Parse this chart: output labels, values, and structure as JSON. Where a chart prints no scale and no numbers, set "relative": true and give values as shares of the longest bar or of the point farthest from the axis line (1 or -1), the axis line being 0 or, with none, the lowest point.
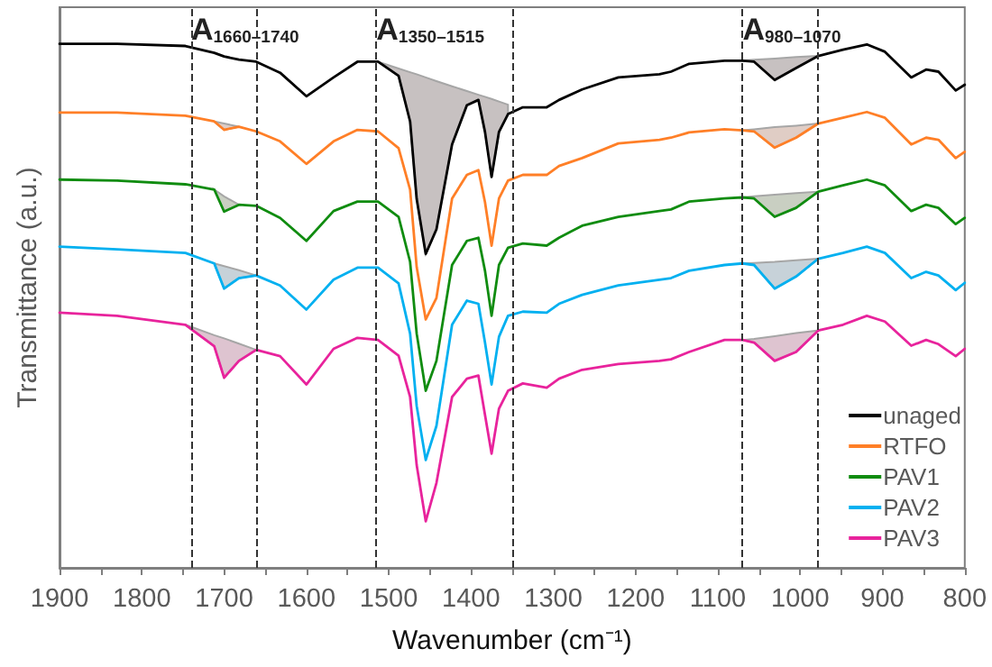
{
  "chart_data": {
    "type": "line",
    "relative": true,
    "xlabel": "Wavenumber (cm⁻¹)",
    "ylabel": "Transmittance (a.u.)",
    "xlim": [
      1900,
      800
    ],
    "xticks": [
      1900,
      {
        "value": 1850,
        "label": null
      },
      1800,
      {
        "value": 1750,
        "label": null
      },
      1700,
      {
        "value": 1650,
        "label": null
      },
      1600,
      {
        "value": 1550,
        "label": null
      },
      1500,
      {
        "value": 1450,
        "label": null
      },
      1400,
      {
        "value": 1350,
        "label": null
      },
      1300,
      {
        "value": 1250,
        "label": null
      },
      1200,
      {
        "value": 1150,
        "label": null
      },
      1100,
      {
        "value": 1050,
        "label": null
      },
      1000,
      {
        "value": 950,
        "label": null
      },
      900,
      {
        "value": 850,
        "label": null
      },
      800
    ],
    "x": [
      1900,
      1830,
      1747,
      1712,
      1700,
      1682,
      1661,
      1632,
      1600,
      1567,
      1538,
      1513,
      1488,
      1474,
      1466,
      1455,
      1442,
      1423,
      1405,
      1391,
      1383,
      1375,
      1366,
      1355,
      1337,
      1308,
      1293,
      1265,
      1221,
      1171,
      1157,
      1135,
      1092,
      1070,
      1056,
      1031,
      1005,
      978,
      948,
      919,
      897,
      865,
      847,
      832,
      811,
      800
    ],
    "series": [
      {
        "name": "unaged",
        "color": "#000000",
        "values": [
          1.0,
          1.0,
          0.996,
          0.983,
          0.976,
          0.97,
          0.966,
          0.945,
          0.9,
          0.936,
          0.966,
          0.966,
          0.939,
          0.852,
          0.704,
          0.599,
          0.646,
          0.808,
          0.883,
          0.893,
          0.832,
          0.746,
          0.832,
          0.866,
          0.879,
          0.879,
          0.893,
          0.913,
          0.936,
          0.942,
          0.947,
          0.962,
          0.968,
          0.968,
          0.966,
          0.931,
          0.954,
          0.977,
          0.989,
          0.999,
          0.985,
          0.936,
          0.951,
          0.947,
          0.911,
          0.922
        ],
        "upper": [
          null,
          null,
          null,
          null,
          null,
          null,
          null,
          null,
          null,
          null,
          null,
          0.966,
          0.953,
          0.946,
          0.942,
          0.936,
          0.929,
          0.919,
          0.91,
          0.903,
          0.899,
          0.895,
          0.89,
          0.884,
          null,
          null,
          null,
          null,
          null,
          null,
          null,
          null,
          null,
          0.968,
          0.97,
          0.972,
          0.975,
          0.977,
          null,
          null,
          null,
          null,
          null,
          null,
          null,
          null
        ],
        "lower": [
          null,
          null,
          null,
          null,
          null,
          null,
          null,
          null,
          null,
          null,
          null,
          0.966,
          0.939,
          0.852,
          0.704,
          0.599,
          0.646,
          0.808,
          0.883,
          0.893,
          0.832,
          0.746,
          0.832,
          0.866,
          null,
          null,
          null,
          null,
          null,
          null,
          null,
          null,
          null,
          0.968,
          0.966,
          0.931,
          0.954,
          0.977,
          null,
          null,
          null,
          null,
          null,
          null,
          null,
          null
        ]
      },
      {
        "name": "RTFO",
        "color": "#ff7f27",
        "values": [
          0.869,
          0.869,
          0.863,
          0.852,
          0.836,
          0.842,
          0.833,
          0.814,
          0.771,
          0.814,
          0.836,
          0.833,
          0.801,
          0.722,
          0.574,
          0.474,
          0.515,
          0.705,
          0.75,
          0.759,
          0.698,
          0.615,
          0.705,
          0.739,
          0.75,
          0.75,
          0.767,
          0.782,
          0.81,
          0.817,
          0.821,
          0.831,
          0.837,
          0.835,
          0.833,
          0.802,
          0.821,
          0.848,
          0.859,
          0.87,
          0.859,
          0.808,
          0.821,
          0.817,
          0.782,
          0.794
        ],
        "upper": [
          null,
          null,
          null,
          0.852,
          0.848,
          0.842,
          null,
          null,
          null,
          null,
          null,
          null,
          null,
          null,
          null,
          null,
          null,
          null,
          null,
          null,
          null,
          null,
          null,
          null,
          null,
          null,
          null,
          null,
          null,
          null,
          null,
          null,
          null,
          0.835,
          0.837,
          0.841,
          0.844,
          0.848,
          null,
          null,
          null,
          null,
          null,
          null,
          null,
          null
        ],
        "lower": [
          null,
          null,
          null,
          0.852,
          0.836,
          0.842,
          null,
          null,
          null,
          null,
          null,
          null,
          null,
          null,
          null,
          null,
          null,
          null,
          null,
          null,
          null,
          null,
          null,
          null,
          null,
          null,
          null,
          null,
          null,
          null,
          null,
          null,
          null,
          0.835,
          0.833,
          0.802,
          0.821,
          0.848,
          null,
          null,
          null,
          null,
          null,
          null,
          null,
          null
        ]
      },
      {
        "name": "PAV1",
        "color": "#108c10",
        "values": [
          0.741,
          0.739,
          0.732,
          0.722,
          0.68,
          0.693,
          0.691,
          0.668,
          0.624,
          0.681,
          0.699,
          0.699,
          0.67,
          0.584,
          0.447,
          0.338,
          0.395,
          0.578,
          0.624,
          0.63,
          0.567,
          0.481,
          0.578,
          0.611,
          0.619,
          0.615,
          0.63,
          0.653,
          0.67,
          0.681,
          0.684,
          0.699,
          0.705,
          0.707,
          0.705,
          0.67,
          0.687,
          0.718,
          0.73,
          0.741,
          0.73,
          0.681,
          0.693,
          0.687,
          0.656,
          0.668
        ],
        "upper": [
          null,
          null,
          null,
          0.722,
          0.709,
          0.693,
          null,
          null,
          null,
          null,
          null,
          null,
          null,
          null,
          null,
          null,
          null,
          null,
          null,
          null,
          null,
          null,
          null,
          null,
          null,
          null,
          null,
          null,
          null,
          null,
          null,
          null,
          null,
          0.707,
          0.709,
          0.712,
          0.715,
          0.718,
          null,
          null,
          null,
          null,
          null,
          null,
          null,
          null
        ],
        "lower": [
          null,
          null,
          null,
          0.722,
          0.68,
          0.693,
          null,
          null,
          null,
          null,
          null,
          null,
          null,
          null,
          null,
          null,
          null,
          null,
          null,
          null,
          null,
          null,
          null,
          null,
          null,
          null,
          null,
          null,
          null,
          null,
          null,
          null,
          null,
          0.707,
          0.705,
          0.67,
          0.687,
          0.718,
          null,
          null,
          null,
          null,
          null,
          null,
          null,
          null
        ]
      },
      {
        "name": "PAV2",
        "color": "#00b0f0",
        "values": [
          0.613,
          0.608,
          0.601,
          0.581,
          0.533,
          0.553,
          0.558,
          0.539,
          0.493,
          0.55,
          0.573,
          0.573,
          0.543,
          0.447,
          0.309,
          0.206,
          0.271,
          0.464,
          0.51,
          0.504,
          0.43,
          0.35,
          0.441,
          0.481,
          0.489,
          0.487,
          0.504,
          0.521,
          0.539,
          0.55,
          0.553,
          0.567,
          0.578,
          0.581,
          0.578,
          0.533,
          0.556,
          0.59,
          0.601,
          0.613,
          0.601,
          0.553,
          0.565,
          0.558,
          0.53,
          0.544
        ],
        "upper": [
          null,
          null,
          null,
          0.581,
          0.576,
          0.568,
          0.558,
          null,
          null,
          null,
          null,
          null,
          null,
          null,
          null,
          null,
          null,
          null,
          null,
          null,
          null,
          null,
          null,
          null,
          null,
          null,
          null,
          null,
          null,
          null,
          null,
          null,
          null,
          0.581,
          0.582,
          0.584,
          0.587,
          0.59,
          null,
          null,
          null,
          null,
          null,
          null,
          null,
          null
        ],
        "lower": [
          null,
          null,
          null,
          0.581,
          0.533,
          0.553,
          0.558,
          null,
          null,
          null,
          null,
          null,
          null,
          null,
          null,
          null,
          null,
          null,
          null,
          null,
          null,
          null,
          null,
          null,
          null,
          null,
          null,
          null,
          null,
          null,
          null,
          null,
          null,
          0.581,
          0.578,
          0.533,
          0.556,
          0.59,
          null,
          null,
          null,
          null,
          null,
          null,
          null,
          null
        ]
      },
      {
        "name": "PAV3",
        "color": "#e8239c",
        "values": [
          0.487,
          0.481,
          0.464,
          0.423,
          0.363,
          0.395,
          0.416,
          0.404,
          0.35,
          0.418,
          0.439,
          0.435,
          0.405,
          0.326,
          0.196,
          0.089,
          0.162,
          0.326,
          0.361,
          0.367,
          0.292,
          0.218,
          0.304,
          0.338,
          0.352,
          0.344,
          0.361,
          0.378,
          0.389,
          0.395,
          0.398,
          0.412,
          0.435,
          0.435,
          0.43,
          0.395,
          0.412,
          0.453,
          0.464,
          0.481,
          0.47,
          0.424,
          0.435,
          0.427,
          0.404,
          0.418
        ],
        "upper": [
          null,
          null,
          0.464,
          0.444,
          0.438,
          0.428,
          0.416,
          null,
          null,
          null,
          null,
          null,
          null,
          null,
          null,
          null,
          null,
          null,
          null,
          null,
          null,
          null,
          null,
          null,
          null,
          null,
          null,
          null,
          null,
          null,
          null,
          null,
          null,
          0.435,
          0.437,
          0.442,
          0.448,
          0.453,
          null,
          null,
          null,
          null,
          null,
          null,
          null,
          null
        ],
        "lower": [
          null,
          null,
          0.464,
          0.423,
          0.363,
          0.395,
          0.416,
          null,
          null,
          null,
          null,
          null,
          null,
          null,
          null,
          null,
          null,
          null,
          null,
          null,
          null,
          null,
          null,
          null,
          null,
          null,
          null,
          null,
          null,
          null,
          null,
          null,
          null,
          0.435,
          0.43,
          0.395,
          0.412,
          0.453,
          null,
          null,
          null,
          null,
          null,
          null,
          null,
          null
        ]
      }
    ],
    "ref_lines": [
      {
        "axis": "x",
        "value": 1740,
        "label": "A$_{1660–1740}$",
        "line_style": "dashed"
      },
      {
        "axis": "x",
        "value": 1660,
        "label": null,
        "line_style": "dashed"
      },
      {
        "axis": "x",
        "value": 1515,
        "label": "A$_{1350–1515}$",
        "line_style": "dashed"
      },
      {
        "axis": "x",
        "value": 1350,
        "label": null,
        "line_style": "dashed"
      },
      {
        "axis": "x",
        "value": 1070,
        "label": "A$_{980–1070}$",
        "line_style": "dashed"
      },
      {
        "axis": "x",
        "value": 980,
        "label": null,
        "line_style": "dashed"
      }
    ],
    "legend": "bottom right",
    "grid": false,
    "marker": "none",
    "line_style": "solid"
  }
}
